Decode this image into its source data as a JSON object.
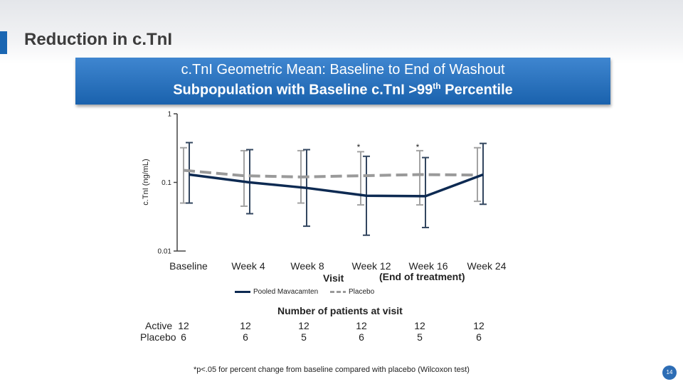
{
  "slide": {
    "title": "Reduction in c.TnI",
    "page_number": "14"
  },
  "banner": {
    "line1": "c.TnI Geometric Mean: Baseline to End of Washout",
    "line2_main": "Subpopulation with Baseline c.TnI >99",
    "line2_sup": "th",
    "line2_end": " Percentile"
  },
  "chart_data": {
    "type": "line",
    "ylabel": "c.TnI (ng/mL)",
    "yscale": "log",
    "ylim": [
      0.01,
      1
    ],
    "yticks": [
      {
        "value": 1,
        "label": "1"
      },
      {
        "value": 0.1,
        "label": "0.1"
      },
      {
        "value": 0.01,
        "label": "0.01"
      }
    ],
    "categories": [
      "Baseline",
      "Week 4",
      "Week 8",
      "Week 12",
      "Week 16",
      "Week 24"
    ],
    "xlabel": "Visit",
    "annotation_end_of_treatment": "(End of treatment)",
    "significance_marker": "*",
    "significant_categories": [
      "Week 12",
      "Week 16"
    ],
    "series": [
      {
        "name": "Pooled Mavacamten",
        "style": "solid",
        "color": "#0d2a52",
        "values": [
          0.13,
          0.1,
          0.083,
          0.064,
          0.063,
          0.13
        ],
        "error_low": [
          0.05,
          0.035,
          0.023,
          0.017,
          0.022,
          0.048
        ],
        "error_high": [
          0.38,
          0.3,
          0.3,
          0.24,
          0.23,
          0.37
        ]
      },
      {
        "name": "Placebo",
        "style": "dashed",
        "color": "#9a9a9a",
        "values": [
          0.15,
          0.125,
          0.12,
          0.125,
          0.13,
          0.128
        ],
        "error_low": [
          0.05,
          0.045,
          0.05,
          0.047,
          0.047,
          0.053
        ],
        "error_high": [
          0.32,
          0.29,
          0.29,
          0.28,
          0.29,
          0.32
        ]
      }
    ]
  },
  "patients": {
    "title": "Number of patients at visit",
    "active_label": "Active",
    "placebo_label": "Placebo",
    "active": [
      "12",
      "12",
      "12",
      "12",
      "12",
      "12"
    ],
    "placebo": [
      "6",
      "6",
      "5",
      "6",
      "5",
      "6"
    ]
  },
  "footnote": "*p<.05 for percent change from baseline compared with placebo (Wilcoxon test)"
}
